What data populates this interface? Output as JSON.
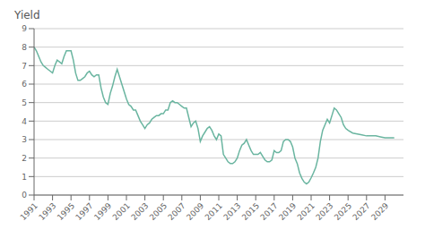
{
  "chart_data": {
    "type": "line",
    "title": "Yield",
    "color": "#6ab5a0",
    "grid": true,
    "xlim": [
      1991,
      2031
    ],
    "xticks": [
      1991,
      1993,
      1995,
      1997,
      1999,
      2001,
      2003,
      2005,
      2007,
      2009,
      2011,
      2013,
      2015,
      2017,
      2019,
      2021,
      2023,
      2025,
      2027,
      2029
    ],
    "ylim": [
      0,
      9
    ],
    "yticks": [
      0,
      1,
      2,
      3,
      4,
      5,
      6,
      7,
      8,
      9
    ],
    "x": [
      1991.0,
      1991.25,
      1991.5,
      1991.75,
      1992.0,
      1992.25,
      1992.5,
      1992.75,
      1993.0,
      1993.25,
      1993.5,
      1993.75,
      1994.0,
      1994.25,
      1994.5,
      1994.75,
      1995.0,
      1995.25,
      1995.5,
      1995.75,
      1996.0,
      1996.25,
      1996.5,
      1996.75,
      1997.0,
      1997.25,
      1997.5,
      1997.75,
      1998.0,
      1998.25,
      1998.5,
      1998.75,
      1999.0,
      1999.25,
      1999.5,
      1999.75,
      2000.0,
      2000.25,
      2000.5,
      2000.75,
      2001.0,
      2001.25,
      2001.5,
      2001.75,
      2002.0,
      2002.25,
      2002.5,
      2002.75,
      2003.0,
      2003.25,
      2003.5,
      2003.75,
      2004.0,
      2004.25,
      2004.5,
      2004.75,
      2005.0,
      2005.25,
      2005.5,
      2005.75,
      2006.0,
      2006.25,
      2006.5,
      2006.75,
      2007.0,
      2007.25,
      2007.5,
      2007.75,
      2008.0,
      2008.25,
      2008.5,
      2008.75,
      2009.0,
      2009.25,
      2009.5,
      2009.75,
      2010.0,
      2010.25,
      2010.5,
      2010.75,
      2011.0,
      2011.25,
      2011.5,
      2011.75,
      2012.0,
      2012.25,
      2012.5,
      2012.75,
      2013.0,
      2013.25,
      2013.5,
      2013.75,
      2014.0,
      2014.25,
      2014.5,
      2014.75,
      2015.0,
      2015.25,
      2015.5,
      2015.75,
      2016.0,
      2016.25,
      2016.5,
      2016.75,
      2017.0,
      2017.25,
      2017.5,
      2017.75,
      2018.0,
      2018.25,
      2018.5,
      2018.75,
      2019.0,
      2019.25,
      2019.5,
      2019.75,
      2020.0,
      2020.25,
      2020.5,
      2020.75,
      2021.0,
      2021.25,
      2021.5,
      2021.75,
      2022.0,
      2022.25,
      2022.5,
      2022.75,
      2023.0,
      2023.25,
      2023.5,
      2023.75,
      2024.0,
      2024.25,
      2024.5,
      2024.75,
      2025.0,
      2025.5,
      2026.0,
      2026.5,
      2027.0,
      2027.5,
      2028.0,
      2028.5,
      2029.0,
      2029.5,
      2030.0
    ],
    "values": [
      8.0,
      7.8,
      7.5,
      7.2,
      7.0,
      6.9,
      6.8,
      6.7,
      6.6,
      7.0,
      7.3,
      7.2,
      7.1,
      7.5,
      7.8,
      7.8,
      7.8,
      7.3,
      6.6,
      6.2,
      6.2,
      6.3,
      6.4,
      6.6,
      6.7,
      6.5,
      6.4,
      6.5,
      6.5,
      5.8,
      5.3,
      5.0,
      4.9,
      5.5,
      5.9,
      6.4,
      6.8,
      6.4,
      6.0,
      5.6,
      5.2,
      4.9,
      4.8,
      4.6,
      4.6,
      4.3,
      4.0,
      3.8,
      3.6,
      3.8,
      3.9,
      4.1,
      4.2,
      4.3,
      4.3,
      4.4,
      4.4,
      4.6,
      4.6,
      5.0,
      5.1,
      5.0,
      5.0,
      4.9,
      4.8,
      4.7,
      4.7,
      4.2,
      3.7,
      3.9,
      4.0,
      3.6,
      2.9,
      3.2,
      3.4,
      3.6,
      3.7,
      3.5,
      3.2,
      3.0,
      3.3,
      3.2,
      2.2,
      2.0,
      1.8,
      1.7,
      1.7,
      1.8,
      2.0,
      2.4,
      2.7,
      2.8,
      3.0,
      2.7,
      2.4,
      2.2,
      2.2,
      2.2,
      2.3,
      2.1,
      1.9,
      1.8,
      1.8,
      1.9,
      2.4,
      2.3,
      2.3,
      2.4,
      2.9,
      3.0,
      3.0,
      2.9,
      2.6,
      2.0,
      1.7,
      1.2,
      0.9,
      0.7,
      0.6,
      0.7,
      0.93,
      1.2,
      1.5,
      2.0,
      2.9,
      3.5,
      3.8,
      4.1,
      3.9,
      4.3,
      4.7,
      4.6,
      4.4,
      4.2,
      3.8,
      3.6,
      3.5,
      3.35,
      3.3,
      3.25,
      3.2,
      3.2,
      3.2,
      3.15,
      3.1,
      3.1,
      3.1
    ]
  }
}
